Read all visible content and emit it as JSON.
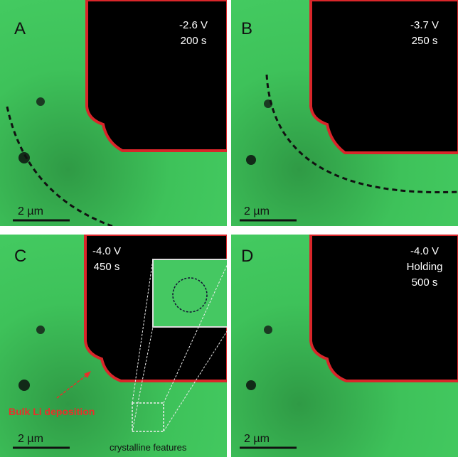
{
  "panels": [
    {
      "label": "A",
      "voltage": "-2.6 V",
      "time": "200 s",
      "scale": "2 µm"
    },
    {
      "label": "B",
      "voltage": "-3.7 V",
      "time": "250 s",
      "scale": "2 µm"
    },
    {
      "label": "C",
      "voltage": "-4.0 V",
      "time": "450 s",
      "scale": "2 µm"
    },
    {
      "label": "D",
      "voltage": "-4.0 V",
      "mode": "Holding",
      "time": "500 s",
      "scale": "2 µm"
    }
  ],
  "annotations": {
    "deposition": "Bulk Li deposition",
    "features": "crystalline features"
  }
}
